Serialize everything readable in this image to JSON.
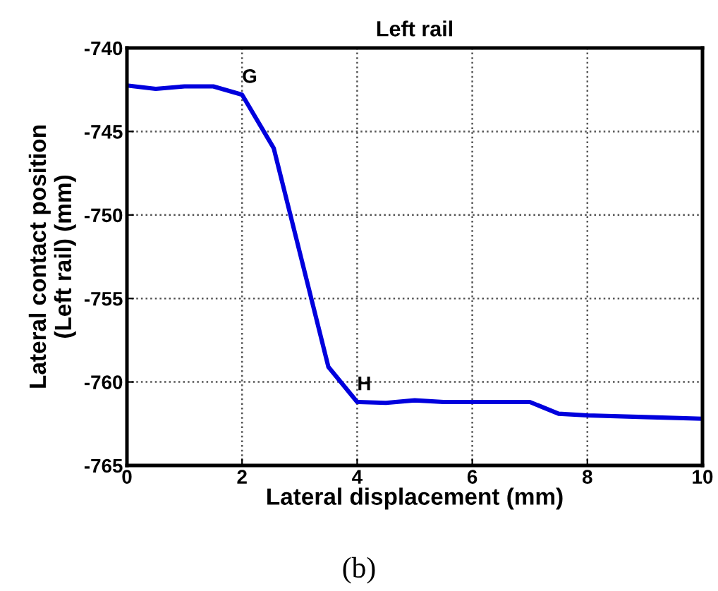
{
  "chart_data": {
    "type": "line",
    "title": "Left rail",
    "xlabel": "Lateral displacement (mm)",
    "ylabel": "Lateral contact position\n(Left rail) (mm)",
    "x": [
      0,
      0.5,
      1,
      1.5,
      2,
      2.55,
      3.5,
      4,
      4.5,
      5,
      5.5,
      6,
      7,
      7.5,
      8,
      9,
      10
    ],
    "series": [
      {
        "color": "#0000dd",
        "values": [
          -742.25,
          -742.45,
          -742.3,
          -742.3,
          -742.8,
          -746.0,
          -759.1,
          -761.2,
          -761.25,
          -761.1,
          -761.2,
          -761.2,
          -761.2,
          -761.9,
          -762.0,
          -762.1,
          -762.2
        ]
      }
    ],
    "xlim": [
      0,
      10
    ],
    "ylim": [
      -765,
      -740
    ],
    "xticks": [
      0,
      2,
      4,
      6,
      8,
      10
    ],
    "yticks": [
      -765,
      -760,
      -755,
      -750,
      -745,
      -740
    ],
    "grid": true,
    "legend": false,
    "marker": "none",
    "line_style": "solid",
    "annotations": [
      {
        "text": "G",
        "x": 2,
        "y": -742.8
      },
      {
        "text": "H",
        "x": 4,
        "y": -761.2
      },
      "(b)"
    ]
  }
}
